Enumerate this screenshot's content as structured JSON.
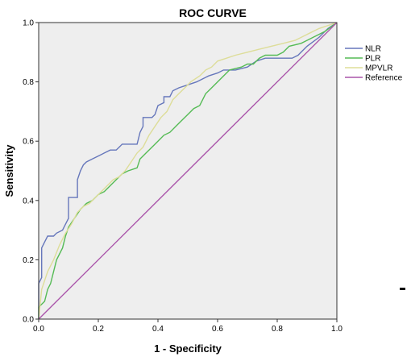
{
  "chart_data": {
    "type": "line",
    "title": "ROC CURVE",
    "xlabel": "1 - Specificity",
    "ylabel": "Sensitivity",
    "xlim": [
      0,
      1
    ],
    "ylim": [
      0,
      1
    ],
    "x_ticks": [
      "0.0",
      "0.2",
      "0.4",
      "0.6",
      "0.8",
      "1.0"
    ],
    "y_ticks": [
      "0.0",
      "0.2",
      "0.4",
      "0.6",
      "0.8",
      "1.0"
    ],
    "grid": false,
    "legend_position": "right",
    "plot_background": "#eeeeee",
    "series": [
      {
        "name": "NLR",
        "color": "#6677bb",
        "points": [
          [
            0,
            0
          ],
          [
            0,
            0.12
          ],
          [
            0.01,
            0.14
          ],
          [
            0.01,
            0.24
          ],
          [
            0.02,
            0.26
          ],
          [
            0.03,
            0.28
          ],
          [
            0.05,
            0.28
          ],
          [
            0.06,
            0.29
          ],
          [
            0.08,
            0.3
          ],
          [
            0.09,
            0.32
          ],
          [
            0.1,
            0.34
          ],
          [
            0.1,
            0.41
          ],
          [
            0.13,
            0.41
          ],
          [
            0.13,
            0.47
          ],
          [
            0.14,
            0.5
          ],
          [
            0.15,
            0.52
          ],
          [
            0.16,
            0.53
          ],
          [
            0.18,
            0.54
          ],
          [
            0.2,
            0.55
          ],
          [
            0.22,
            0.56
          ],
          [
            0.24,
            0.57
          ],
          [
            0.26,
            0.57
          ],
          [
            0.27,
            0.58
          ],
          [
            0.28,
            0.59
          ],
          [
            0.33,
            0.59
          ],
          [
            0.34,
            0.63
          ],
          [
            0.35,
            0.65
          ],
          [
            0.35,
            0.68
          ],
          [
            0.38,
            0.68
          ],
          [
            0.39,
            0.69
          ],
          [
            0.4,
            0.72
          ],
          [
            0.42,
            0.73
          ],
          [
            0.42,
            0.75
          ],
          [
            0.44,
            0.75
          ],
          [
            0.45,
            0.77
          ],
          [
            0.47,
            0.78
          ],
          [
            0.5,
            0.79
          ],
          [
            0.53,
            0.8
          ],
          [
            0.55,
            0.81
          ],
          [
            0.57,
            0.82
          ],
          [
            0.6,
            0.83
          ],
          [
            0.62,
            0.84
          ],
          [
            0.66,
            0.84
          ],
          [
            0.7,
            0.85
          ],
          [
            0.73,
            0.87
          ],
          [
            0.76,
            0.88
          ],
          [
            0.85,
            0.88
          ],
          [
            0.87,
            0.89
          ],
          [
            0.88,
            0.9
          ],
          [
            0.9,
            0.92
          ],
          [
            0.94,
            0.95
          ],
          [
            0.97,
            0.98
          ],
          [
            1.0,
            1.0
          ]
        ]
      },
      {
        "name": "PLR",
        "color": "#55bb55",
        "points": [
          [
            0,
            0
          ],
          [
            0,
            0.04
          ],
          [
            0.02,
            0.06
          ],
          [
            0.03,
            0.1
          ],
          [
            0.04,
            0.12
          ],
          [
            0.05,
            0.16
          ],
          [
            0.06,
            0.2
          ],
          [
            0.08,
            0.24
          ],
          [
            0.09,
            0.28
          ],
          [
            0.1,
            0.31
          ],
          [
            0.12,
            0.34
          ],
          [
            0.14,
            0.37
          ],
          [
            0.16,
            0.39
          ],
          [
            0.18,
            0.4
          ],
          [
            0.2,
            0.42
          ],
          [
            0.22,
            0.43
          ],
          [
            0.24,
            0.45
          ],
          [
            0.26,
            0.47
          ],
          [
            0.28,
            0.49
          ],
          [
            0.3,
            0.5
          ],
          [
            0.33,
            0.51
          ],
          [
            0.34,
            0.54
          ],
          [
            0.36,
            0.56
          ],
          [
            0.38,
            0.58
          ],
          [
            0.4,
            0.6
          ],
          [
            0.42,
            0.62
          ],
          [
            0.44,
            0.63
          ],
          [
            0.46,
            0.65
          ],
          [
            0.48,
            0.67
          ],
          [
            0.5,
            0.69
          ],
          [
            0.52,
            0.71
          ],
          [
            0.54,
            0.72
          ],
          [
            0.56,
            0.76
          ],
          [
            0.58,
            0.78
          ],
          [
            0.6,
            0.8
          ],
          [
            0.62,
            0.82
          ],
          [
            0.64,
            0.84
          ],
          [
            0.68,
            0.85
          ],
          [
            0.7,
            0.86
          ],
          [
            0.72,
            0.86
          ],
          [
            0.74,
            0.88
          ],
          [
            0.76,
            0.89
          ],
          [
            0.8,
            0.89
          ],
          [
            0.82,
            0.9
          ],
          [
            0.84,
            0.92
          ],
          [
            0.88,
            0.93
          ],
          [
            0.92,
            0.95
          ],
          [
            0.96,
            0.97
          ],
          [
            1.0,
            1.0
          ]
        ]
      },
      {
        "name": "MPVLR",
        "color": "#dddd99",
        "points": [
          [
            0,
            0
          ],
          [
            0.01,
            0.1
          ],
          [
            0.03,
            0.16
          ],
          [
            0.05,
            0.2
          ],
          [
            0.07,
            0.25
          ],
          [
            0.09,
            0.29
          ],
          [
            0.11,
            0.32
          ],
          [
            0.13,
            0.36
          ],
          [
            0.15,
            0.38
          ],
          [
            0.17,
            0.39
          ],
          [
            0.19,
            0.41
          ],
          [
            0.21,
            0.43
          ],
          [
            0.23,
            0.45
          ],
          [
            0.25,
            0.47
          ],
          [
            0.27,
            0.48
          ],
          [
            0.29,
            0.5
          ],
          [
            0.31,
            0.53
          ],
          [
            0.33,
            0.56
          ],
          [
            0.35,
            0.58
          ],
          [
            0.37,
            0.62
          ],
          [
            0.39,
            0.65
          ],
          [
            0.41,
            0.68
          ],
          [
            0.43,
            0.7
          ],
          [
            0.45,
            0.74
          ],
          [
            0.47,
            0.76
          ],
          [
            0.49,
            0.78
          ],
          [
            0.51,
            0.8
          ],
          [
            0.54,
            0.82
          ],
          [
            0.56,
            0.84
          ],
          [
            0.58,
            0.85
          ],
          [
            0.6,
            0.87
          ],
          [
            0.63,
            0.88
          ],
          [
            0.66,
            0.89
          ],
          [
            0.7,
            0.9
          ],
          [
            0.74,
            0.91
          ],
          [
            0.78,
            0.92
          ],
          [
            0.82,
            0.93
          ],
          [
            0.86,
            0.94
          ],
          [
            0.9,
            0.96
          ],
          [
            0.94,
            0.98
          ],
          [
            1.0,
            1.0
          ]
        ]
      },
      {
        "name": "Reference",
        "color": "#aa55aa",
        "points": [
          [
            0,
            0
          ],
          [
            1,
            1
          ]
        ]
      }
    ]
  }
}
